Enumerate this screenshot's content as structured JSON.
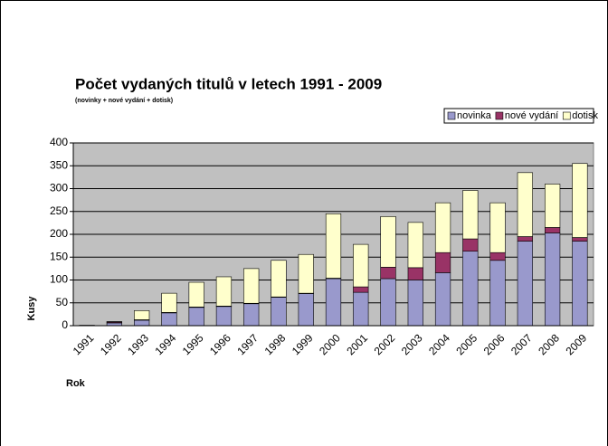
{
  "chart_data": {
    "type": "stacked_bar",
    "title": "Počet vydaných titulů v letech 1991 - 2009",
    "subtitle": "(novinky + nové vydání + dotisk)",
    "x_label": "Rok",
    "y_label": "Kusy",
    "categories": [
      "1991",
      "1992",
      "1993",
      "1994",
      "1995",
      "1996",
      "1997",
      "1998",
      "1999",
      "2000",
      "2001",
      "2002",
      "2003",
      "2004",
      "2005",
      "2006",
      "2007",
      "2008",
      "2009"
    ],
    "series": [
      {
        "name": "novinka",
        "color": "#9999cc",
        "values": [
          1,
          6,
          12,
          28,
          40,
          42,
          48,
          62,
          70,
          103,
          73,
          103,
          100,
          116,
          163,
          143,
          185,
          203,
          185
        ]
      },
      {
        "name": "nové vydání",
        "color": "#993366",
        "values": [
          0,
          2,
          1,
          1,
          1,
          1,
          1,
          1,
          1,
          1,
          12,
          25,
          27,
          44,
          27,
          17,
          10,
          12,
          8
        ]
      },
      {
        "name": "dotisk",
        "color": "#ffffcc",
        "values": [
          0,
          1,
          20,
          42,
          54,
          64,
          76,
          80,
          85,
          141,
          93,
          111,
          99,
          109,
          106,
          109,
          140,
          95,
          162
        ]
      }
    ],
    "ylim": [
      0,
      400
    ],
    "yticks": [
      0,
      50,
      100,
      150,
      200,
      250,
      300,
      350,
      400
    ],
    "grid": true,
    "legend": "top-right",
    "plot_background": "#c0c0c0"
  }
}
